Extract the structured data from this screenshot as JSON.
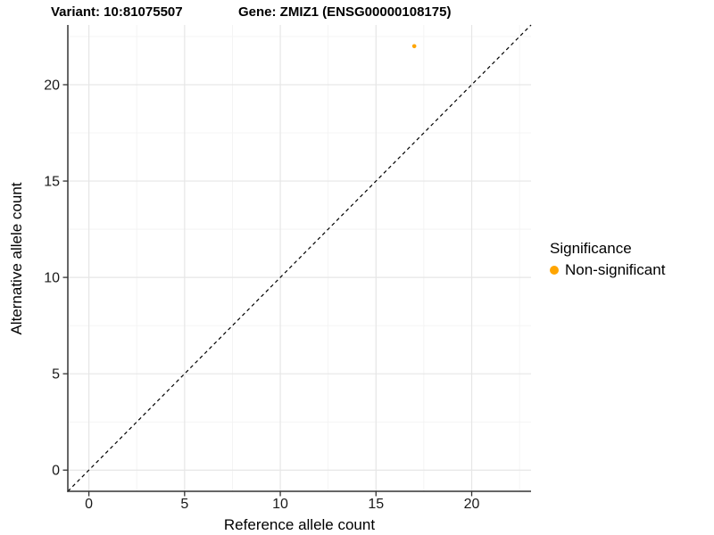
{
  "figure": {
    "title_variant": "Variant: 10:81075507",
    "title_gene": "Gene: ZMIZ1 (ENSG00000108175)"
  },
  "chart_data": {
    "type": "scatter",
    "xlabel": "Reference allele count",
    "ylabel": "Alternative allele count",
    "xlim": [
      -1.1,
      23.1
    ],
    "ylim": [
      -1.1,
      23.1
    ],
    "x_major_ticks": [
      0,
      5,
      10,
      15,
      20
    ],
    "y_major_ticks": [
      0,
      5,
      10,
      15,
      20
    ],
    "x_minor_gridlines": [
      2.5,
      7.5,
      12.5,
      17.5,
      22.5
    ],
    "y_minor_gridlines": [
      2.5,
      7.5,
      12.5,
      17.5,
      22.5
    ],
    "grid": "major-and-minor",
    "identity_line": {
      "slope": 1,
      "intercept": 0,
      "style": "dashed",
      "color": "#000000"
    },
    "series": [
      {
        "name": "Non-significant",
        "color": "#FFA500",
        "points": [
          {
            "x": 17,
            "y": 22
          }
        ]
      }
    ],
    "legend": {
      "position": "right",
      "title": "Significance",
      "items": [
        {
          "label": "Non-significant",
          "color": "#FFA500",
          "marker": "circle"
        }
      ]
    }
  },
  "colors": {
    "background": "#FFFFFF",
    "axis_line": "#333333",
    "tick_mark": "#333333",
    "tick_label": "#1A1A1A",
    "grid_major": "#E6E6E6",
    "grid_minor": "#F2F2F2",
    "point": "#FFA500"
  }
}
